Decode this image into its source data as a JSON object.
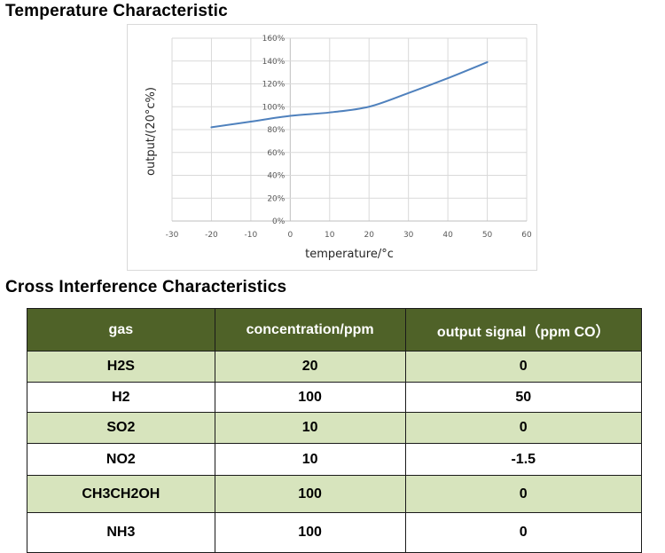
{
  "sections": {
    "temperature_title": "Temperature Characteristic",
    "cross_title": "Cross Interference Characteristics"
  },
  "chart_data": {
    "type": "line",
    "title": "",
    "xlabel": "temperature/°c",
    "ylabel": "output/(20°c%)",
    "xlim": [
      -30,
      60
    ],
    "ylim": [
      0,
      160
    ],
    "x_ticks": [
      "-30",
      "-20",
      "-10",
      "0",
      "10",
      "20",
      "30",
      "40",
      "50",
      "60"
    ],
    "y_ticks": [
      "0%",
      "20%",
      "40%",
      "60%",
      "80%",
      "100%",
      "120%",
      "140%",
      "160%"
    ],
    "grid": true,
    "legend": null,
    "series": [
      {
        "name": "output",
        "color": "#4f81bd",
        "x": [
          -20,
          -10,
          0,
          10,
          20,
          30,
          40,
          50
        ],
        "values": [
          82,
          87,
          92,
          95,
          100,
          112,
          125,
          139
        ]
      }
    ]
  },
  "table": {
    "columns": [
      "gas",
      "concentration/ppm",
      "output signal（ppm CO）"
    ],
    "rows": [
      {
        "gas": "H2S",
        "concentration": "20",
        "output": "0"
      },
      {
        "gas": "H2",
        "concentration": "100",
        "output": "50"
      },
      {
        "gas": "SO2",
        "concentration": "10",
        "output": "0"
      },
      {
        "gas": "NO2",
        "concentration": "10",
        "output": "-1.5"
      },
      {
        "gas": "CH3CH2OH",
        "concentration": "100",
        "output": "0"
      },
      {
        "gas": "NH3",
        "concentration": "100",
        "output": "0"
      }
    ],
    "colors": {
      "header_bg": "#4f6228",
      "header_text": "#ffffff",
      "shade_row": "#d7e4bd"
    }
  }
}
